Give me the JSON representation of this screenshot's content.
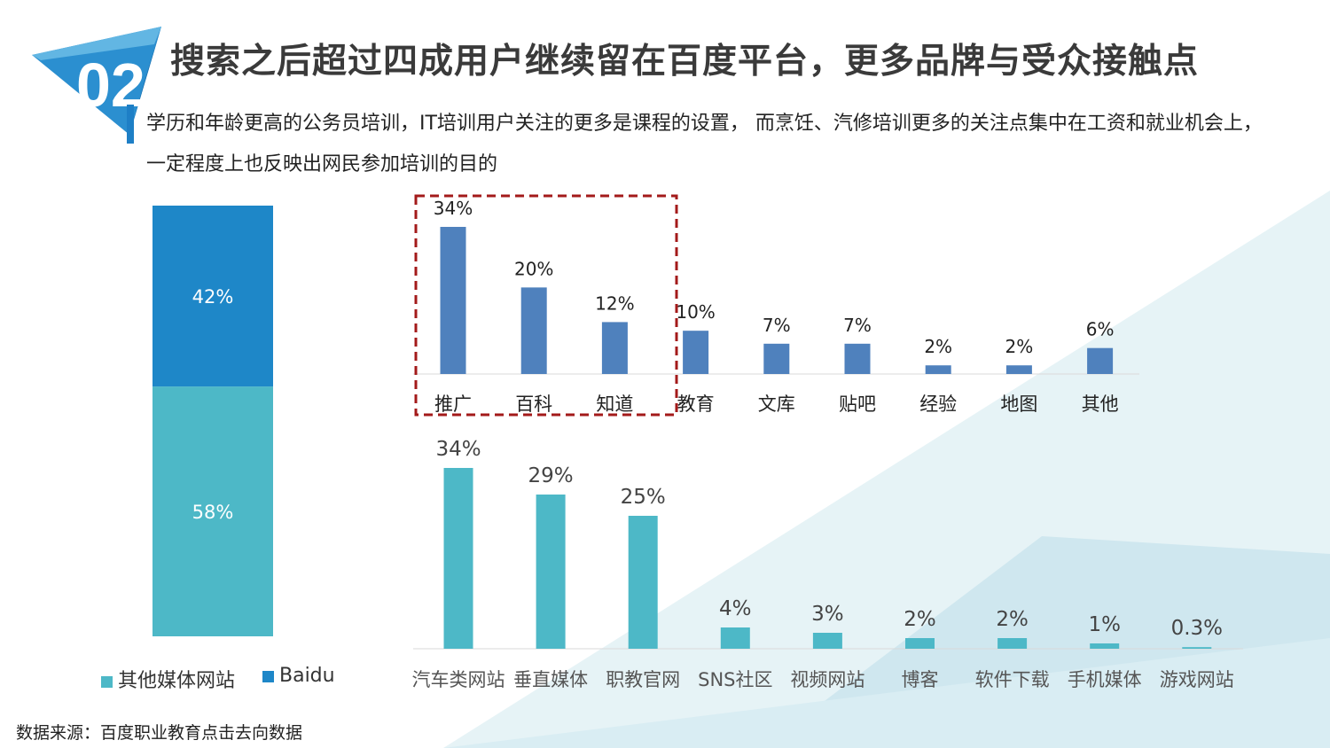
{
  "header": {
    "badge_number": "02",
    "title": "搜索之后超过四成用户继续留在百度平台，更多品牌与受众接触点",
    "subtitle": "学历和年龄更高的公务员培训，IT培训用户关注的更多是课程的设置， 而烹饪、汽修培训更多的关注点集中在工资和就业机会上，一定程度上也反映出网民参加培训的目的"
  },
  "source_note": "数据来源：百度职业教育点击去向数据",
  "colors": {
    "accent_blue": "#1e7fc6",
    "teal": "#4db8c7",
    "bar_blue": "#4f81bd",
    "highlight_box": "#a31a1a"
  },
  "chart_data": [
    {
      "type": "bar",
      "stacked": true,
      "categories": [
        ""
      ],
      "series": [
        {
          "name": "其他媒体网站",
          "values": [
            58
          ],
          "label": "58%",
          "color": "#4db8c7"
        },
        {
          "name": "Baidu",
          "values": [
            42
          ],
          "label": "42%",
          "color": "#1e87c8"
        }
      ],
      "legend": [
        "其他媒体网站",
        "Baidu"
      ],
      "legend_position": "bottom",
      "ylim": [
        0,
        100
      ]
    },
    {
      "type": "bar",
      "categories": [
        "推广",
        "百科",
        "知道",
        "教育",
        "文库",
        "贴吧",
        "经验",
        "地图",
        "其他"
      ],
      "values": [
        34,
        20,
        12,
        10,
        7,
        7,
        2,
        2,
        6
      ],
      "labels": [
        "34%",
        "20%",
        "12%",
        "10%",
        "7%",
        "7%",
        "2%",
        "2%",
        "6%"
      ],
      "highlighted_categories": [
        "推广",
        "百科",
        "知道"
      ],
      "color": "#4f81bd",
      "ylim": [
        0,
        34
      ]
    },
    {
      "type": "bar",
      "categories": [
        "汽车类网站",
        "垂直媒体",
        "职教官网",
        "SNS社区",
        "视频网站",
        "博客",
        "软件下载",
        "手机媒体",
        "游戏网站"
      ],
      "values": [
        34,
        29,
        25,
        4,
        3,
        2,
        2,
        1,
        0.3
      ],
      "labels": [
        "34%",
        "29%",
        "25%",
        "4%",
        "3%",
        "2%",
        "2%",
        "1%",
        "0.3%"
      ],
      "color": "#4db8c7",
      "ylim": [
        0,
        34
      ]
    }
  ]
}
